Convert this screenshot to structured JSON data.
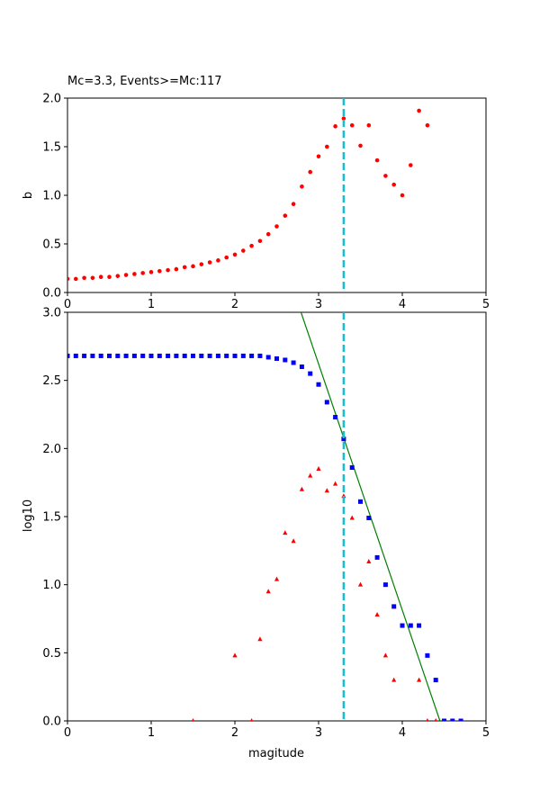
{
  "chart_data": [
    {
      "type": "scatter",
      "title": "Mc=3.3, Events>=Mc:117",
      "xlabel": "",
      "ylabel": "b",
      "xlim": [
        0,
        5
      ],
      "ylim": [
        0,
        2.0
      ],
      "xticks": [
        "0",
        "1",
        "2",
        "3",
        "4",
        "5"
      ],
      "yticks": [
        "0.0",
        "0.5",
        "1.0",
        "1.5",
        "2.0"
      ],
      "grid": false,
      "vline": {
        "x": 3.3,
        "color": "#17becf",
        "style": "dashed"
      },
      "series": [
        {
          "marker": "circle",
          "color": "#ff0000",
          "x": [
            0.0,
            0.1,
            0.2,
            0.3,
            0.4,
            0.5,
            0.6,
            0.7,
            0.8,
            0.9,
            1.0,
            1.1,
            1.2,
            1.3,
            1.4,
            1.5,
            1.6,
            1.7,
            1.8,
            1.9,
            2.0,
            2.1,
            2.2,
            2.3,
            2.4,
            2.5,
            2.6,
            2.7,
            2.8,
            2.9,
            3.0,
            3.1,
            3.2,
            3.3,
            3.4,
            3.5,
            3.6,
            3.7,
            3.8,
            3.9,
            4.0,
            4.1,
            4.2,
            4.3
          ],
          "y": [
            0.14,
            0.14,
            0.15,
            0.15,
            0.16,
            0.16,
            0.17,
            0.18,
            0.19,
            0.2,
            0.21,
            0.22,
            0.23,
            0.24,
            0.26,
            0.27,
            0.29,
            0.31,
            0.33,
            0.36,
            0.39,
            0.43,
            0.48,
            0.53,
            0.6,
            0.68,
            0.79,
            0.91,
            1.09,
            1.24,
            1.4,
            1.5,
            1.71,
            1.79,
            1.72,
            1.51,
            1.72,
            1.36,
            1.2,
            1.11,
            1.0,
            1.31,
            1.87,
            1.72
          ]
        }
      ]
    },
    {
      "type": "scatter",
      "title": "",
      "xlabel": "magitude",
      "ylabel": "log10",
      "xlim": [
        0,
        5
      ],
      "ylim": [
        0,
        3.0
      ],
      "xticks": [
        "0",
        "1",
        "2",
        "3",
        "4",
        "5"
      ],
      "yticks": [
        "0.0",
        "0.5",
        "1.0",
        "1.5",
        "2.0",
        "2.5",
        "3.0"
      ],
      "grid": false,
      "vline": {
        "x": 3.3,
        "color": "#17becf",
        "style": "dashed"
      },
      "fit_line": {
        "color": "#008000",
        "x": [
          2.79,
          4.45
        ],
        "y": [
          3.0,
          0.0
        ]
      },
      "series": [
        {
          "marker": "square",
          "color": "#0000ff",
          "x": [
            0.0,
            0.1,
            0.2,
            0.3,
            0.4,
            0.5,
            0.6,
            0.7,
            0.8,
            0.9,
            1.0,
            1.1,
            1.2,
            1.3,
            1.4,
            1.5,
            1.6,
            1.7,
            1.8,
            1.9,
            2.0,
            2.1,
            2.2,
            2.3,
            2.4,
            2.5,
            2.6,
            2.7,
            2.8,
            2.9,
            3.0,
            3.1,
            3.2,
            3.3,
            3.4,
            3.5,
            3.6,
            3.7,
            3.8,
            3.9,
            4.0,
            4.1,
            4.2,
            4.3,
            4.4,
            4.5,
            4.6,
            4.7
          ],
          "y": [
            2.68,
            2.68,
            2.68,
            2.68,
            2.68,
            2.68,
            2.68,
            2.68,
            2.68,
            2.68,
            2.68,
            2.68,
            2.68,
            2.68,
            2.68,
            2.68,
            2.68,
            2.68,
            2.68,
            2.68,
            2.68,
            2.68,
            2.68,
            2.68,
            2.67,
            2.66,
            2.65,
            2.63,
            2.6,
            2.55,
            2.47,
            2.34,
            2.23,
            2.07,
            1.86,
            1.61,
            1.49,
            1.2,
            1.0,
            0.84,
            0.7,
            0.7,
            0.7,
            0.48,
            0.3,
            0.0,
            0.0,
            0.0
          ]
        },
        {
          "marker": "triangle",
          "color": "#ff0000",
          "x": [
            1.5,
            2.0,
            2.2,
            2.3,
            2.4,
            2.5,
            2.6,
            2.7,
            2.8,
            2.9,
            3.0,
            3.1,
            3.2,
            3.3,
            3.4,
            3.5,
            3.6,
            3.7,
            3.8,
            3.9,
            4.2,
            4.3,
            4.4
          ],
          "y": [
            0.0,
            0.48,
            0.0,
            0.6,
            0.95,
            1.04,
            1.38,
            1.32,
            1.7,
            1.8,
            1.85,
            1.69,
            1.74,
            1.65,
            1.49,
            1.0,
            1.17,
            0.78,
            0.48,
            0.3,
            0.3,
            0.0,
            0.0
          ]
        }
      ]
    }
  ]
}
